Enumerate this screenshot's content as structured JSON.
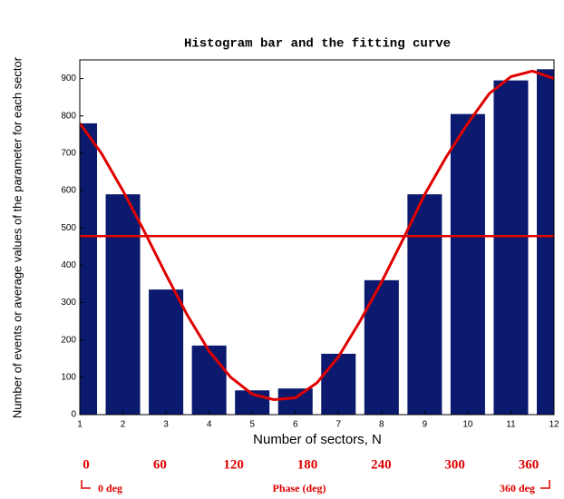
{
  "chart_data": {
    "type": "bar",
    "title": "Histogram bar and the fitting curve",
    "xlabel": "Number of sectors, N",
    "ylabel": "Number of events or average values of the parameter for each sector",
    "x": [
      1,
      2,
      3,
      4,
      5,
      6,
      7,
      8,
      9,
      10,
      11,
      12
    ],
    "values": [
      780,
      590,
      335,
      185,
      65,
      70,
      163,
      360,
      590,
      805,
      895,
      925
    ],
    "color": "#0b1a6e",
    "curve": {
      "type": "line",
      "color": "#e00000",
      "x": [
        1,
        1.5,
        2,
        2.5,
        3,
        3.5,
        4,
        4.5,
        5,
        5.5,
        6,
        6.5,
        7,
        7.5,
        8,
        8.5,
        9,
        9.5,
        10,
        10.5,
        11,
        11.5,
        12
      ],
      "values": [
        780,
        700,
        600,
        490,
        375,
        265,
        170,
        100,
        55,
        40,
        45,
        85,
        155,
        250,
        355,
        470,
        590,
        690,
        780,
        860,
        905,
        920,
        900
      ]
    },
    "mean_line": {
      "value": 478,
      "color": "#e00000"
    },
    "xlim": [
      1,
      12
    ],
    "xticks": [
      1,
      2,
      3,
      4,
      5,
      6,
      7,
      8,
      9,
      10,
      11,
      12
    ],
    "ylim": [
      0,
      950
    ],
    "yticks": [
      0,
      100,
      200,
      300,
      400,
      500,
      600,
      700,
      800,
      900
    ],
    "phase_ticks": [
      0,
      60,
      120,
      180,
      240,
      300,
      360
    ],
    "phase_start_label": "0 deg",
    "phase_label": "Phase (deg)",
    "phase_end_label": "360 deg"
  }
}
